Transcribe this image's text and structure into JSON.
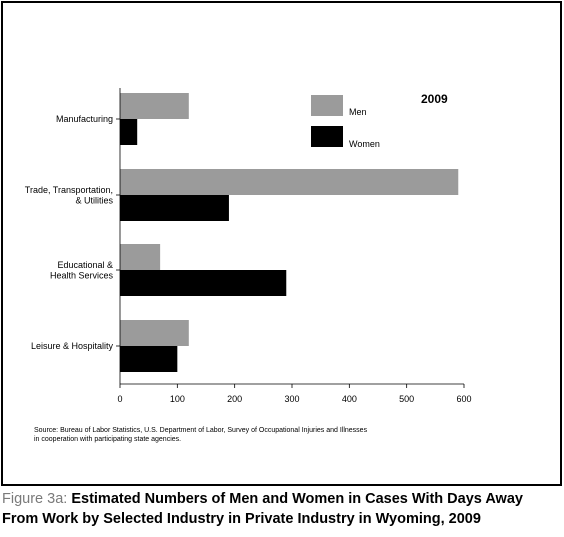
{
  "chart_data": {
    "type": "bar",
    "orientation": "horizontal",
    "year_label": "2009",
    "categories": [
      [
        "Manufacturing"
      ],
      [
        "Trade, Transportation,",
        "& Utilities"
      ],
      [
        "Educational &",
        "Health Services"
      ],
      [
        "Leisure & Hospitality"
      ]
    ],
    "series": [
      {
        "name": "Men",
        "color": "#9b9b9b",
        "values": [
          120,
          590,
          70,
          120
        ]
      },
      {
        "name": "Women",
        "color": "#000000",
        "values": [
          30,
          190,
          290,
          100
        ]
      }
    ],
    "xlim": [
      0,
      600
    ],
    "xticks": [
      "0",
      "100",
      "200",
      "300",
      "400",
      "500",
      "600"
    ],
    "grid": false,
    "legend": "top-right"
  },
  "source_line1": "Source: Bureau of Labor Statistics, U.S. Department of Labor, Survey of Occupational Injuries and Illnesses",
  "source_line2": "in cooperation with participating state agencies.",
  "caption_prefix": "Figure 3a: ",
  "caption_text": "Estimated Numbers of Men and Women in Cases With Days Away From Work by Selected Industry in Private Industry in Wyoming, 2009"
}
